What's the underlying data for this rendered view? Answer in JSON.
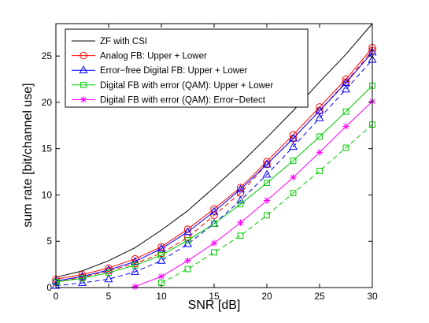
{
  "chart_data": {
    "type": "line",
    "title": "",
    "xlabel": "SNR [dB]",
    "ylabel": "sum rate [bit/channel use]",
    "xlim": [
      0,
      30
    ],
    "ylim": [
      0,
      28.5
    ],
    "xticks": [
      0,
      5,
      10,
      15,
      20,
      25,
      30
    ],
    "yticks": [
      0,
      5,
      10,
      15,
      20,
      25
    ],
    "grid": false,
    "legend_position": "top-left",
    "x": [
      0,
      2.5,
      5,
      7.5,
      10,
      12.5,
      15,
      17.5,
      20,
      22.5,
      25,
      27.5,
      30
    ],
    "legend": [
      {
        "label": "ZF with CSI",
        "color": "#000000",
        "marker": "none"
      },
      {
        "label": "Analog FB: Upper + Lower",
        "color": "#ff0000",
        "marker": "circle"
      },
      {
        "label": "Error−free Digital FB: Upper + Lower",
        "color": "#0000ff",
        "marker": "triangle"
      },
      {
        "label": "Digital FB with error (QAM): Upper + Lower",
        "color": "#00cc00",
        "marker": "square"
      },
      {
        "label": "Digital FB with error (QAM): Error−Detect",
        "color": "#ff00ff",
        "marker": "star"
      }
    ],
    "series": [
      {
        "color": "#000000",
        "dash": "solid",
        "marker": "none",
        "values": [
          1.1,
          1.8,
          2.9,
          4.3,
          6.2,
          8.3,
          10.8,
          13.4,
          16.2,
          19.1,
          22.2,
          25.2,
          28.5
        ]
      },
      {
        "color": "#ff0000",
        "dash": "solid",
        "marker": "circle",
        "values": [
          0.9,
          1.4,
          2.1,
          3.1,
          4.4,
          6.3,
          8.5,
          10.8,
          13.6,
          16.5,
          19.5,
          22.5,
          25.9
        ]
      },
      {
        "color": "#ff0000",
        "dash": "dashed",
        "marker": "circle",
        "values": [
          0.6,
          1.1,
          1.8,
          2.6,
          3.7,
          5.4,
          7.8,
          10.2,
          13.3,
          16.1,
          19.1,
          22.2,
          25.6
        ]
      },
      {
        "color": "#0000ff",
        "dash": "solid",
        "marker": "triangle",
        "values": [
          0.7,
          1.2,
          1.9,
          2.8,
          4.2,
          6.0,
          8.2,
          10.6,
          13.3,
          16.1,
          19.1,
          22.1,
          25.4
        ]
      },
      {
        "color": "#0000ff",
        "dash": "dashed",
        "marker": "triangle",
        "values": [
          0.2,
          0.5,
          0.9,
          1.7,
          2.9,
          4.7,
          6.9,
          9.4,
          12.2,
          15.2,
          18.3,
          21.4,
          24.6
        ]
      },
      {
        "color": "#00cc00",
        "dash": "solid",
        "marker": "square",
        "values": [
          0.6,
          1.0,
          1.6,
          2.4,
          3.5,
          5.1,
          6.9,
          9.0,
          11.3,
          13.7,
          16.3,
          19.0,
          21.8
        ]
      },
      {
        "color": "#00cc00",
        "dash": "dashed",
        "marker": "square",
        "values": [
          null,
          null,
          null,
          null,
          0.5,
          2.0,
          3.8,
          5.6,
          7.8,
          10.2,
          12.6,
          15.1,
          17.6
        ]
      },
      {
        "color": "#ff00ff",
        "dash": "solid",
        "marker": "star",
        "values": [
          null,
          null,
          null,
          0.1,
          1.2,
          2.9,
          4.8,
          7.0,
          9.4,
          11.9,
          14.6,
          17.4,
          20.1
        ]
      }
    ]
  }
}
